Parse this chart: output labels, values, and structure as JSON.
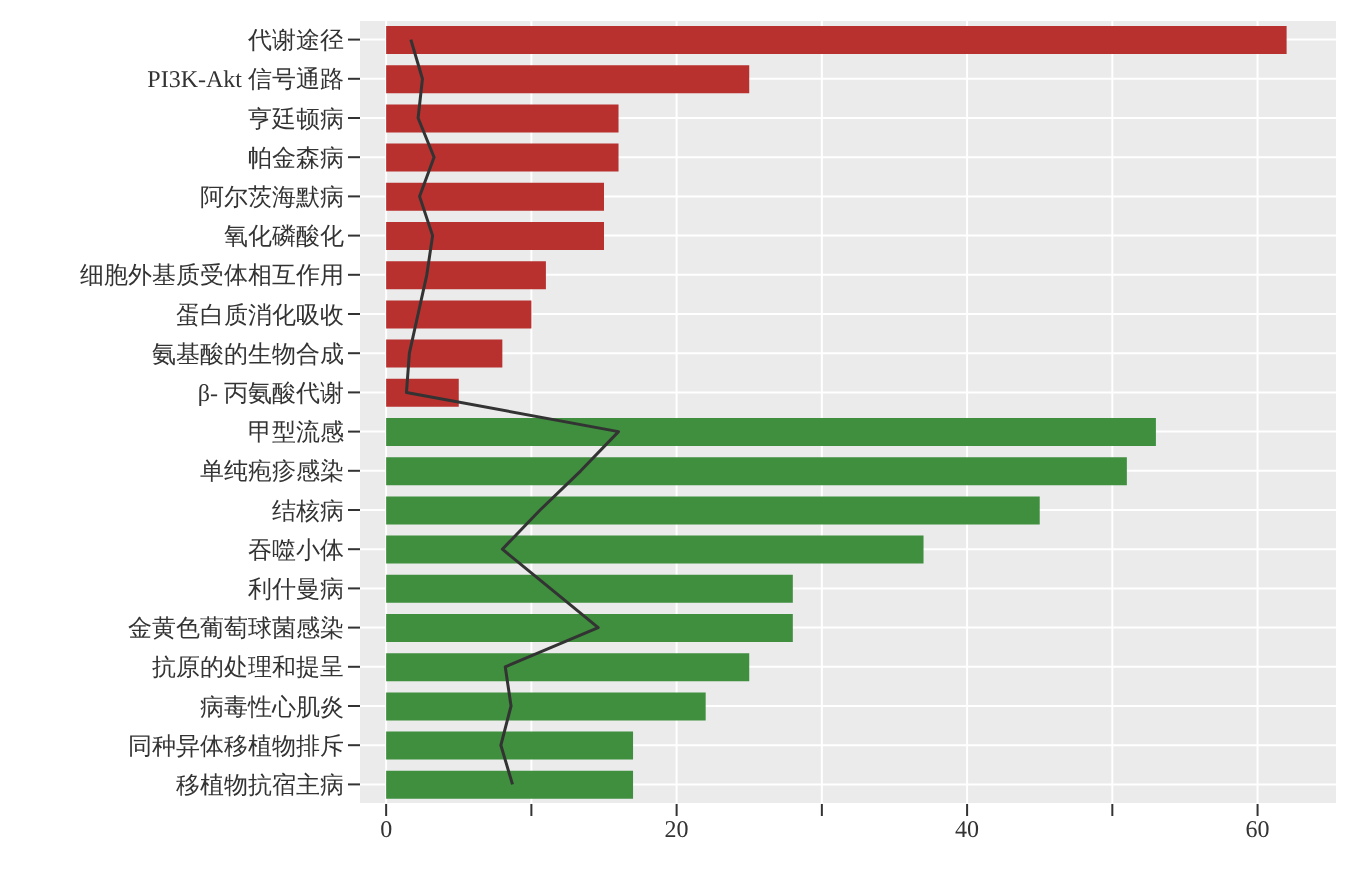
{
  "chart_data": {
    "type": "bar",
    "orientation": "horizontal",
    "categories": [
      "代谢途径",
      "PI3K-Akt 信号通路",
      "亨廷顿病",
      "帕金森病",
      "阿尔茨海默病",
      "氧化磷酸化",
      "细胞外基质受体相互作用",
      "蛋白质消化吸收",
      "氨基酸的生物合成",
      "β- 丙氨酸代谢",
      "甲型流感",
      "单纯疱疹感染",
      "结核病",
      "吞噬小体",
      "利什曼病",
      "金黄色葡萄球菌感染",
      "抗原的处理和提呈",
      "病毒性心肌炎",
      "同种异体移植物排斥",
      "移植物抗宿主病"
    ],
    "series": [
      {
        "values": [
          62,
          25,
          16,
          16,
          15,
          15,
          11,
          10,
          8,
          5,
          53,
          51,
          45,
          37,
          28,
          28,
          25,
          22,
          17,
          17
        ],
        "colors": [
          "#b8312f",
          "#b8312f",
          "#b8312f",
          "#b8312f",
          "#b8312f",
          "#b8312f",
          "#b8312f",
          "#b8312f",
          "#b8312f",
          "#b8312f",
          "#3f8f3f",
          "#3f8f3f",
          "#3f8f3f",
          "#3f8f3f",
          "#3f8f3f",
          "#3f8f3f",
          "#3f8f3f",
          "#3f8f3f",
          "#3f8f3f",
          "#3f8f3f"
        ]
      },
      {
        "type": "line",
        "color": "#333333",
        "values": [
          1.7,
          2.5,
          2.2,
          3.3,
          2.3,
          3.2,
          2.8,
          2.2,
          1.6,
          1.4,
          16,
          13.4,
          10.6,
          8,
          11.3,
          14.6,
          8.2,
          8.6,
          7.9,
          8.7
        ]
      }
    ],
    "xlim": [
      -1.8,
      65.4
    ],
    "xticks": [
      0,
      {
        "value": 10,
        "label": null
      },
      20,
      {
        "value": 30,
        "label": null
      },
      40,
      {
        "value": 50,
        "label": null
      },
      60
    ],
    "grid": true,
    "marker": "none",
    "line_style": "solid"
  }
}
